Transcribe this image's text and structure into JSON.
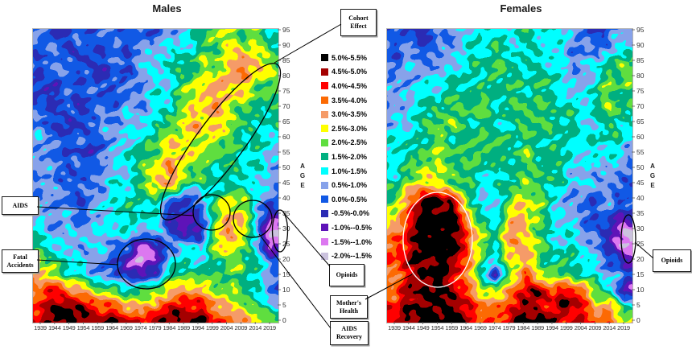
{
  "charts_header": {
    "males_title": "Males",
    "females_title": "Females"
  },
  "axis": {
    "age_label": "AGE",
    "age_ticks": [
      95,
      90,
      85,
      80,
      75,
      70,
      65,
      60,
      55,
      50,
      45,
      40,
      35,
      30,
      25,
      20,
      15,
      10,
      5,
      0
    ],
    "year_ticks": [
      1939,
      1944,
      1949,
      1954,
      1959,
      1964,
      1969,
      1974,
      1979,
      1984,
      1989,
      1994,
      1999,
      2004,
      2009,
      2014,
      2019
    ]
  },
  "legend": {
    "position": "center-between-charts",
    "entries": [
      {
        "label": "5.0%-5.5%",
        "min": 5.0,
        "max": 5.5,
        "color": "#000000"
      },
      {
        "label": "4.5%-5.0%",
        "min": 4.5,
        "max": 5.0,
        "color": "#A40000"
      },
      {
        "label": "4.0%-4.5%",
        "min": 4.0,
        "max": 4.5,
        "color": "#FF0000"
      },
      {
        "label": "3.5%-4.0%",
        "min": 3.5,
        "max": 4.0,
        "color": "#FC6A03"
      },
      {
        "label": "3.0%-3.5%",
        "min": 3.0,
        "max": 3.5,
        "color": "#F59B68"
      },
      {
        "label": "2.5%-3.0%",
        "min": 2.5,
        "max": 3.0,
        "color": "#FFFF00"
      },
      {
        "label": "2.0%-2.5%",
        "min": 2.0,
        "max": 2.5,
        "color": "#5FDE3F"
      },
      {
        "label": "1.5%-2.0%",
        "min": 1.5,
        "max": 2.0,
        "color": "#00AF80"
      },
      {
        "label": "1.0%-1.5%",
        "min": 1.0,
        "max": 1.5,
        "color": "#00FFFF"
      },
      {
        "label": "0.5%-1.0%",
        "min": 0.5,
        "max": 1.0,
        "color": "#87A2EA"
      },
      {
        "label": "0.0%-0.5%",
        "min": 0.0,
        "max": 0.5,
        "color": "#1159E5"
      },
      {
        "label": "-0.5%-0.0%",
        "min": -0.5,
        "max": 0.0,
        "color": "#2B2BB4"
      },
      {
        "label": "-1.0%--0.5%",
        "min": -1.0,
        "max": -0.5,
        "color": "#5E13B8"
      },
      {
        "label": "-1.5%--1.0%",
        "min": -1.5,
        "max": -1.0,
        "color": "#DC78F0"
      },
      {
        "label": "-2.0%--1.5%",
        "min": -2.0,
        "max": -1.5,
        "color": "#CBC2DE"
      }
    ]
  },
  "annotations": {
    "cohort_effect": {
      "label": "Cohort\nEffect"
    },
    "aids": {
      "label": "AIDS"
    },
    "fatal_accidents": {
      "label": "Fatal\nAccidents"
    },
    "opioids_male": {
      "label": "Opioids"
    },
    "mothers_health": {
      "label": "Mother's\nHealth"
    },
    "aids_recovery": {
      "label": "AIDS\nRecovery"
    },
    "opioids_female": {
      "label": "Opioids"
    }
  },
  "chart_data": [
    {
      "type": "heatmap",
      "title": "Males",
      "xlabel": "",
      "ylabel": "AGE",
      "x": [
        1939,
        1944,
        1949,
        1954,
        1959,
        1964,
        1969,
        1974,
        1979,
        1984,
        1989,
        1994,
        1999,
        2004,
        2009,
        2014,
        2019
      ],
      "y": [
        95,
        90,
        85,
        80,
        75,
        70,
        65,
        60,
        55,
        50,
        45,
        40,
        35,
        30,
        25,
        20,
        15,
        10,
        5,
        0
      ],
      "unit": "annual mortality improvement rate (%), binned to legend ranges",
      "values": [
        [
          0.25,
          -0.25,
          0.25,
          0.25,
          0.25,
          0.25,
          -0.25,
          0.25,
          0.25,
          0.75,
          1.25,
          1.75,
          2.25,
          2.25,
          2.25,
          2.25,
          1.75
        ],
        [
          0.25,
          0.25,
          -0.25,
          0.25,
          0.25,
          0.25,
          0.25,
          0.25,
          0.75,
          0.75,
          1.25,
          1.75,
          2.25,
          2.75,
          2.25,
          2.25,
          1.75
        ],
        [
          0.25,
          0.25,
          0.25,
          -0.25,
          0.25,
          0.25,
          0.25,
          0.75,
          0.75,
          1.25,
          1.75,
          2.25,
          2.25,
          2.75,
          3.25,
          2.75,
          2.25
        ],
        [
          0.25,
          0.25,
          0.25,
          0.25,
          -0.25,
          0.25,
          0.25,
          0.75,
          0.75,
          1.25,
          1.75,
          2.25,
          2.75,
          3.25,
          3.25,
          2.75,
          2.25
        ],
        [
          0.25,
          -0.25,
          0.25,
          0.25,
          0.25,
          0.25,
          0.75,
          0.75,
          1.25,
          1.25,
          2.25,
          2.75,
          3.25,
          3.25,
          2.75,
          2.25,
          1.75
        ],
        [
          0.25,
          0.25,
          0.25,
          -0.25,
          0.25,
          0.25,
          0.75,
          0.75,
          1.25,
          1.75,
          2.25,
          2.75,
          3.25,
          2.75,
          2.25,
          2.25,
          1.75
        ],
        [
          0.25,
          0.25,
          -0.25,
          0.25,
          0.25,
          0.75,
          0.75,
          1.25,
          1.75,
          2.25,
          2.75,
          3.25,
          2.75,
          2.75,
          2.25,
          1.75,
          1.75
        ],
        [
          0.75,
          0.25,
          0.25,
          0.25,
          0.25,
          0.75,
          0.75,
          1.25,
          2.25,
          2.75,
          2.75,
          2.75,
          2.75,
          2.25,
          1.75,
          1.75,
          1.25
        ],
        [
          0.25,
          0.25,
          0.25,
          -0.25,
          0.25,
          0.75,
          1.25,
          1.75,
          2.25,
          2.75,
          3.25,
          2.75,
          2.25,
          1.75,
          1.75,
          1.25,
          1.25
        ],
        [
          0.75,
          0.25,
          0.25,
          0.25,
          0.75,
          0.75,
          1.25,
          1.75,
          2.75,
          3.25,
          2.75,
          2.25,
          1.75,
          1.75,
          1.25,
          1.25,
          0.75
        ],
        [
          0.75,
          0.25,
          0.25,
          0.25,
          0.75,
          1.25,
          1.25,
          1.75,
          2.75,
          3.25,
          2.25,
          1.75,
          1.75,
          1.25,
          1.25,
          0.75,
          0.75
        ],
        [
          0.75,
          0.75,
          0.25,
          0.25,
          0.75,
          1.25,
          1.75,
          1.75,
          1.75,
          0.75,
          -0.25,
          0.25,
          1.75,
          2.75,
          2.25,
          1.25,
          0.25
        ],
        [
          1.25,
          0.75,
          0.75,
          0.25,
          0.75,
          1.25,
          1.75,
          1.75,
          1.25,
          -0.25,
          -0.75,
          -0.25,
          1.75,
          3.25,
          2.75,
          1.25,
          -0.75
        ],
        [
          1.25,
          0.75,
          0.75,
          0.75,
          0.75,
          1.25,
          1.25,
          1.25,
          1.25,
          0.25,
          -1.25,
          -0.75,
          1.75,
          3.75,
          3.25,
          1.25,
          -1.75
        ],
        [
          1.75,
          1.25,
          0.75,
          0.75,
          0.75,
          0.75,
          0.25,
          -0.75,
          -0.25,
          0.75,
          0.75,
          0.75,
          2.25,
          3.25,
          2.75,
          1.25,
          -1.25
        ],
        [
          2.25,
          1.75,
          1.25,
          0.75,
          0.75,
          0.25,
          -0.75,
          -1.75,
          -0.75,
          0.75,
          1.75,
          1.25,
          1.75,
          2.25,
          2.25,
          1.75,
          0.25
        ],
        [
          2.75,
          2.25,
          1.75,
          1.25,
          0.75,
          0.25,
          -0.25,
          -0.75,
          0.25,
          1.75,
          2.25,
          2.25,
          2.25,
          1.75,
          2.25,
          1.25,
          0.75
        ],
        [
          3.75,
          4.25,
          3.75,
          3.25,
          2.75,
          2.25,
          1.75,
          1.75,
          2.25,
          2.75,
          3.75,
          3.25,
          2.75,
          2.25,
          1.75,
          1.25,
          0.25
        ],
        [
          4.25,
          4.75,
          5.25,
          4.75,
          4.25,
          3.75,
          3.25,
          2.75,
          3.25,
          4.25,
          4.75,
          4.25,
          3.75,
          2.75,
          2.25,
          1.75,
          1.25
        ],
        [
          4.75,
          5.25,
          5.25,
          5.25,
          4.75,
          5.25,
          4.75,
          4.25,
          4.75,
          5.25,
          4.75,
          5.25,
          4.25,
          3.75,
          3.25,
          2.75,
          2.25
        ]
      ]
    },
    {
      "type": "heatmap",
      "title": "Females",
      "xlabel": "",
      "ylabel": "AGE",
      "x": [
        1939,
        1944,
        1949,
        1954,
        1959,
        1964,
        1969,
        1974,
        1979,
        1984,
        1989,
        1994,
        1999,
        2004,
        2009,
        2014,
        2019
      ],
      "y": [
        95,
        90,
        85,
        80,
        75,
        70,
        65,
        60,
        55,
        50,
        45,
        40,
        35,
        30,
        25,
        20,
        15,
        10,
        5,
        0
      ],
      "unit": "annual mortality improvement rate (%), binned to legend ranges",
      "values": [
        [
          0.25,
          0.25,
          -0.25,
          0.25,
          0.75,
          0.75,
          1.25,
          1.25,
          1.25,
          1.75,
          1.25,
          1.25,
          0.75,
          0.25,
          -0.25,
          0.25,
          0.75
        ],
        [
          0.25,
          0.25,
          0.25,
          0.75,
          0.75,
          1.25,
          1.25,
          1.75,
          1.25,
          1.75,
          1.75,
          1.25,
          0.75,
          0.25,
          0.25,
          0.75,
          1.25
        ],
        [
          0.25,
          0.75,
          0.75,
          0.75,
          1.25,
          1.25,
          1.75,
          1.75,
          1.75,
          1.75,
          1.75,
          1.25,
          0.75,
          0.75,
          0.75,
          1.75,
          2.25
        ],
        [
          0.75,
          0.75,
          0.75,
          1.25,
          1.25,
          1.75,
          1.75,
          2.25,
          1.75,
          1.75,
          1.75,
          1.75,
          1.25,
          0.75,
          1.25,
          2.25,
          2.25
        ],
        [
          0.75,
          0.75,
          1.25,
          1.25,
          1.75,
          1.75,
          2.25,
          1.75,
          1.75,
          1.75,
          1.75,
          1.75,
          1.25,
          1.25,
          1.75,
          2.25,
          1.75
        ],
        [
          0.75,
          1.25,
          1.25,
          1.75,
          1.75,
          2.25,
          2.25,
          1.75,
          1.75,
          1.75,
          1.75,
          1.75,
          1.75,
          1.25,
          1.75,
          2.25,
          1.75
        ],
        [
          0.75,
          1.25,
          1.75,
          1.75,
          2.25,
          1.75,
          1.75,
          1.75,
          1.25,
          1.75,
          1.75,
          1.75,
          1.75,
          1.25,
          1.25,
          1.75,
          1.25
        ],
        [
          1.25,
          1.25,
          1.75,
          2.25,
          1.75,
          1.75,
          1.75,
          1.75,
          1.75,
          1.75,
          1.75,
          1.75,
          1.25,
          1.25,
          1.25,
          1.75,
          1.25
        ],
        [
          1.25,
          1.75,
          2.25,
          2.25,
          2.25,
          1.75,
          1.75,
          1.75,
          1.75,
          2.25,
          1.75,
          1.75,
          1.25,
          0.75,
          1.25,
          1.25,
          0.75
        ],
        [
          1.25,
          1.75,
          2.75,
          2.75,
          2.25,
          1.75,
          1.75,
          1.25,
          1.75,
          2.25,
          2.25,
          1.75,
          1.25,
          0.75,
          0.75,
          1.25,
          0.75
        ],
        [
          1.75,
          2.25,
          3.25,
          2.75,
          2.25,
          1.75,
          1.25,
          1.25,
          1.75,
          2.75,
          2.25,
          1.75,
          1.25,
          0.75,
          0.75,
          0.75,
          0.25
        ],
        [
          2.25,
          3.75,
          4.75,
          5.25,
          4.25,
          2.25,
          1.25,
          1.25,
          2.25,
          2.75,
          2.25,
          1.25,
          0.75,
          0.75,
          0.25,
          0.75,
          0.25
        ],
        [
          2.75,
          4.25,
          5.25,
          5.25,
          5.25,
          3.25,
          1.75,
          1.25,
          2.75,
          3.25,
          2.25,
          1.25,
          1.25,
          0.75,
          0.25,
          0.25,
          -0.25
        ],
        [
          3.25,
          4.75,
          5.25,
          5.25,
          5.25,
          4.25,
          2.25,
          1.75,
          3.25,
          2.75,
          1.75,
          1.25,
          1.25,
          0.75,
          0.25,
          -0.75,
          -1.75
        ],
        [
          3.75,
          4.75,
          5.25,
          5.25,
          5.25,
          4.25,
          2.25,
          1.75,
          3.25,
          2.75,
          2.25,
          1.25,
          1.25,
          1.25,
          0.75,
          -0.75,
          -1.75
        ],
        [
          3.75,
          4.75,
          5.25,
          5.25,
          5.25,
          3.75,
          1.75,
          0.75,
          2.75,
          3.25,
          2.25,
          1.75,
          1.75,
          1.25,
          0.75,
          0.25,
          -0.75
        ],
        [
          3.25,
          4.25,
          5.25,
          5.25,
          4.75,
          3.25,
          1.25,
          -0.75,
          2.25,
          3.75,
          2.75,
          2.25,
          1.75,
          1.25,
          1.25,
          0.75,
          0.25
        ],
        [
          3.75,
          4.75,
          5.25,
          5.25,
          4.75,
          3.75,
          2.75,
          2.25,
          3.75,
          4.75,
          5.25,
          3.75,
          4.75,
          3.75,
          2.25,
          1.75,
          -0.75
        ],
        [
          4.25,
          4.75,
          5.25,
          5.25,
          5.25,
          4.25,
          3.75,
          3.25,
          4.25,
          5.25,
          4.75,
          4.25,
          5.25,
          4.25,
          2.75,
          3.75,
          1.75
        ],
        [
          4.75,
          5.25,
          5.25,
          5.25,
          5.25,
          4.75,
          4.25,
          4.25,
          4.75,
          5.25,
          5.25,
          4.75,
          4.25,
          4.75,
          4.25,
          3.75,
          2.75
        ]
      ]
    }
  ]
}
